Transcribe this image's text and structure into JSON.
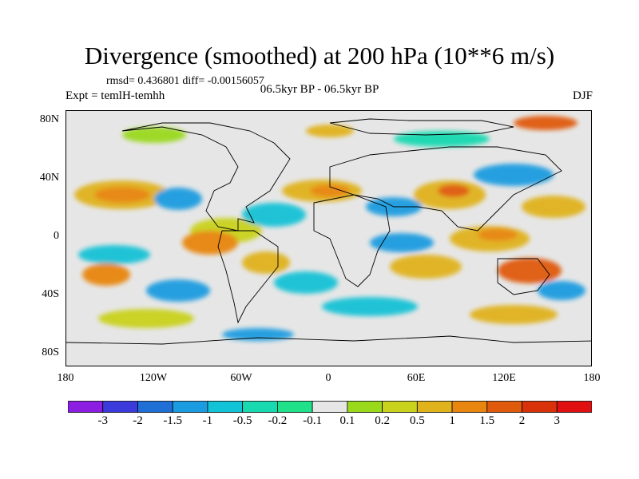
{
  "title": "Divergence (smoothed) at 200 hPa (10**6 m/s)",
  "stats": "rmsd= 0.436801 diff= -0.00156057",
  "expt": "Expt = temlH-temhh",
  "period": "06.5kyr BP - 06.5kyr BP",
  "season": "DJF",
  "lat_labels": [
    "80N",
    "40N",
    "0",
    "40S",
    "80S"
  ],
  "lon_labels": [
    "180",
    "120W",
    "60W",
    "0",
    "60E",
    "120E",
    "180"
  ],
  "colorbar": {
    "labels": [
      "-3",
      "-2",
      "-1.5",
      "-1",
      "-0.5",
      "-0.2",
      "-0.1",
      "0.1",
      "0.2",
      "0.5",
      "1",
      "1.5",
      "2",
      "3"
    ],
    "colors": [
      "#8b1ee0",
      "#3b3bdc",
      "#1f6fd6",
      "#1c9ce0",
      "#12c2d6",
      "#19d9b0",
      "#20e08a",
      "#e6e6e6",
      "#9ad91c",
      "#c9d21c",
      "#e0b21c",
      "#e8860f",
      "#e05a0c",
      "#d9320b",
      "#e01010"
    ]
  }
}
